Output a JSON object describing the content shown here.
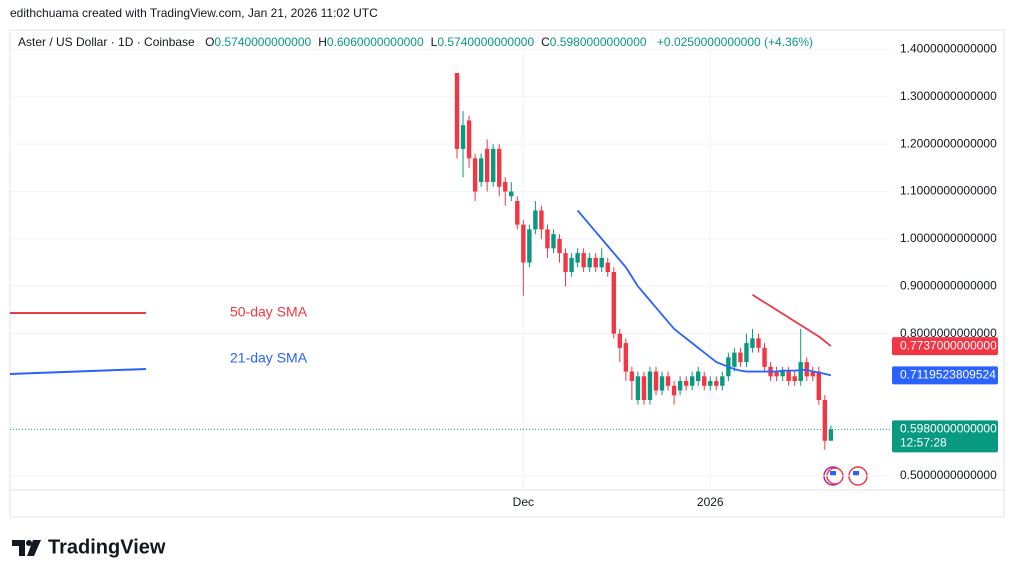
{
  "header": {
    "credit": "edithchuama created with TradingView.com, Jan 21, 2026 11:02 UTC",
    "symbol": "Aster / US Dollar · 1D · Coinbase",
    "ohlc": [
      {
        "key": "O",
        "value": "0.5740000000000"
      },
      {
        "key": "H",
        "value": "0.6060000000000"
      },
      {
        "key": "L",
        "value": "0.5740000000000"
      },
      {
        "key": "C",
        "value": "0.5980000000000"
      }
    ],
    "change": "+0.0250000000000 (+4.36%)"
  },
  "footer": {
    "brand": "TradingView"
  },
  "chart_data": {
    "type": "candlestick",
    "categories": [
      null,
      null,
      null,
      null,
      null,
      null,
      null,
      null,
      null,
      null,
      null,
      "Dec",
      null,
      null,
      null,
      null,
      null,
      null,
      null,
      null,
      null,
      null,
      null,
      null,
      null,
      null,
      null,
      null,
      null,
      null,
      null,
      null,
      null,
      null,
      null,
      null,
      null,
      null,
      null,
      null,
      null,
      null,
      "2026",
      null,
      null,
      null,
      null,
      null,
      null,
      null,
      null,
      null,
      null,
      null,
      null,
      null,
      null,
      null,
      null,
      null,
      null,
      null,
      null
    ],
    "open": [
      1.35,
      1.19,
      1.25,
      1.17,
      1.12,
      1.19,
      1.12,
      1.19,
      1.12,
      1.09,
      1.08,
      1.03,
      0.95,
      1.02,
      1.06,
      1.02,
      0.98,
      1.0,
      0.97,
      0.93,
      0.95,
      0.97,
      0.94,
      0.96,
      0.94,
      0.95,
      0.93,
      0.8,
      0.78,
      0.72,
      0.66,
      0.71,
      0.66,
      0.72,
      0.68,
      0.71,
      0.69,
      0.68,
      0.7,
      0.69,
      0.7,
      0.71,
      0.69,
      0.7,
      0.69,
      0.71,
      0.73,
      0.76,
      0.74,
      0.77,
      0.79,
      0.77,
      0.73,
      0.72,
      0.71,
      0.72,
      0.71,
      0.7,
      0.74,
      0.72,
      0.72,
      0.66,
      0.574
    ],
    "high": [
      1.35,
      1.27,
      1.26,
      1.18,
      1.18,
      1.21,
      1.2,
      1.2,
      1.13,
      1.12,
      1.09,
      1.04,
      1.03,
      1.08,
      1.07,
      1.03,
      1.02,
      1.01,
      0.98,
      0.97,
      0.98,
      0.98,
      0.97,
      0.97,
      0.98,
      0.96,
      0.94,
      0.81,
      0.79,
      0.73,
      0.72,
      0.72,
      0.73,
      0.73,
      0.72,
      0.72,
      0.7,
      0.71,
      0.71,
      0.72,
      0.73,
      0.72,
      0.71,
      0.71,
      0.72,
      0.76,
      0.77,
      0.77,
      0.8,
      0.81,
      0.8,
      0.78,
      0.74,
      0.73,
      0.73,
      0.73,
      0.72,
      0.81,
      0.75,
      0.73,
      0.73,
      0.67,
      0.606
    ],
    "low": [
      1.17,
      1.13,
      1.15,
      1.08,
      1.11,
      1.1,
      1.11,
      1.09,
      1.07,
      1.08,
      1.02,
      0.88,
      0.94,
      1.01,
      1.0,
      0.96,
      0.97,
      0.95,
      0.9,
      0.92,
      0.94,
      0.93,
      0.93,
      0.93,
      0.93,
      0.92,
      0.79,
      0.74,
      0.7,
      0.66,
      0.65,
      0.65,
      0.65,
      0.67,
      0.67,
      0.68,
      0.65,
      0.67,
      0.68,
      0.68,
      0.69,
      0.68,
      0.68,
      0.68,
      0.68,
      0.7,
      0.72,
      0.73,
      0.73,
      0.76,
      0.76,
      0.72,
      0.7,
      0.7,
      0.7,
      0.69,
      0.69,
      0.69,
      0.7,
      0.7,
      0.65,
      0.555,
      0.574
    ],
    "close": [
      1.19,
      1.24,
      1.17,
      1.1,
      1.17,
      1.12,
      1.19,
      1.11,
      1.1,
      1.1,
      1.03,
      0.95,
      1.02,
      1.06,
      1.02,
      0.98,
      1.01,
      0.97,
      0.93,
      0.96,
      0.97,
      0.94,
      0.96,
      0.94,
      0.96,
      0.93,
      0.8,
      0.77,
      0.72,
      0.7,
      0.71,
      0.66,
      0.72,
      0.68,
      0.71,
      0.69,
      0.67,
      0.7,
      0.69,
      0.71,
      0.72,
      0.69,
      0.7,
      0.69,
      0.71,
      0.75,
      0.76,
      0.74,
      0.78,
      0.79,
      0.77,
      0.73,
      0.71,
      0.71,
      0.72,
      0.7,
      0.7,
      0.74,
      0.71,
      0.71,
      0.66,
      0.574,
      0.598
    ],
    "up_color": "#089981",
    "down_color": "#f23645",
    "series": [
      {
        "name": "21-day SMA",
        "color": "#2962ff",
        "values": [
          null,
          null,
          null,
          null,
          null,
          null,
          null,
          null,
          null,
          null,
          null,
          null,
          null,
          null,
          null,
          null,
          null,
          null,
          null,
          null,
          1.06,
          1.045,
          1.03,
          1.015,
          1.0,
          0.985,
          0.97,
          0.955,
          0.94,
          0.92,
          0.9,
          0.885,
          0.87,
          0.855,
          0.84,
          0.825,
          0.81,
          0.8,
          0.79,
          0.78,
          0.77,
          0.76,
          0.75,
          0.74,
          0.735,
          0.73,
          0.725,
          0.722,
          0.72,
          0.72,
          0.72,
          0.72,
          0.72,
          0.72,
          0.722,
          0.722,
          0.722,
          0.723,
          0.724,
          0.72,
          0.718,
          0.715,
          0.7119523809524
        ]
      },
      {
        "name": "50-day SMA",
        "color": "#f23645",
        "values": [
          null,
          null,
          null,
          null,
          null,
          null,
          null,
          null,
          null,
          null,
          null,
          null,
          null,
          null,
          null,
          null,
          null,
          null,
          null,
          null,
          null,
          null,
          null,
          null,
          null,
          null,
          null,
          null,
          null,
          null,
          null,
          null,
          null,
          null,
          null,
          null,
          null,
          null,
          null,
          null,
          null,
          null,
          null,
          null,
          null,
          null,
          null,
          null,
          null,
          0.882,
          0.874,
          0.866,
          0.858,
          0.85,
          0.842,
          0.834,
          0.826,
          0.818,
          0.81,
          0.802,
          0.794,
          0.784,
          0.7737
        ]
      }
    ],
    "price_labels": [
      {
        "value": 0.7737,
        "label": "0.7737000000000",
        "color": "#f23645"
      },
      {
        "value": 0.7119523809524,
        "label": "0.7119523809524",
        "color": "#2962ff"
      },
      {
        "value": 0.598,
        "label": "0.5980000000000",
        "color": "#089981",
        "countdown": "12:57:28"
      }
    ],
    "ylim": [
      0.47,
      1.424
    ],
    "yticks": [
      {
        "value": 0.5,
        "label": "0.5000000000000"
      },
      {
        "value": 0.8,
        "label": "0.8000000000000"
      },
      {
        "value": 0.9,
        "label": "0.9000000000000"
      },
      {
        "value": 1.0,
        "label": "1.0000000000000"
      },
      {
        "value": 1.1,
        "label": "1.1000000000000"
      },
      {
        "value": 1.2,
        "label": "1.2000000000000"
      },
      {
        "value": 1.3,
        "label": "1.3000000000000"
      },
      {
        "value": 1.4,
        "label": "1.4000000000000"
      }
    ],
    "grid": true
  }
}
